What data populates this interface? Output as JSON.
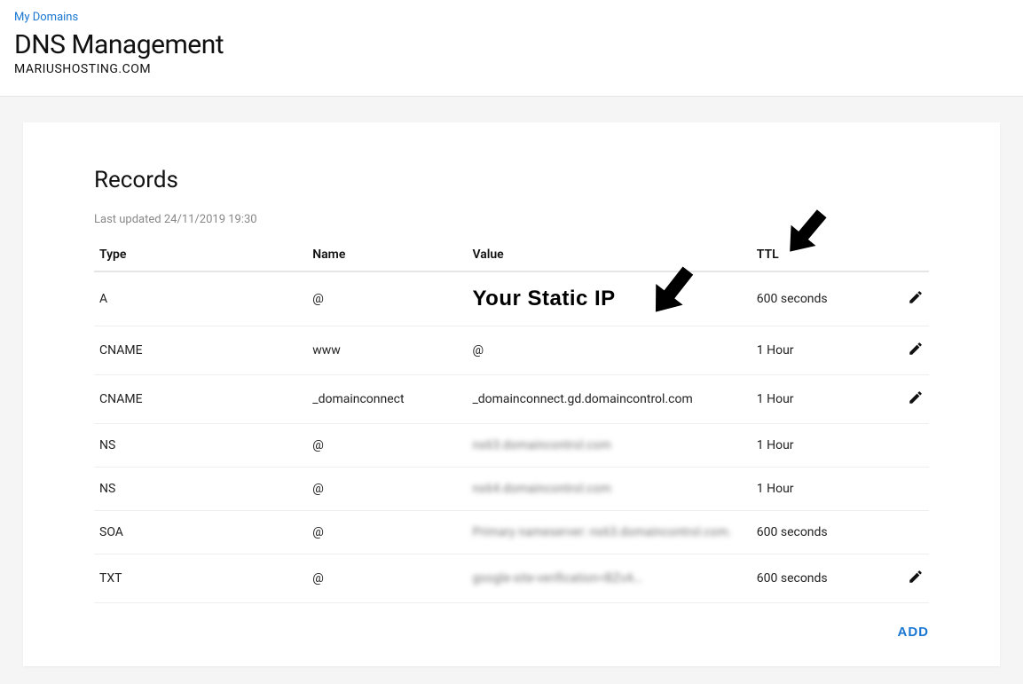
{
  "breadcrumb": {
    "label": "My Domains"
  },
  "page": {
    "title": "DNS Management",
    "domain": "MARIUSHOSTING.COM"
  },
  "records_section": {
    "title": "Records",
    "last_updated_prefix": "Last updated ",
    "last_updated_value": "24/11/2019 19:30",
    "columns": {
      "type": "Type",
      "name": "Name",
      "value": "Value",
      "ttl": "TTL"
    },
    "rows": [
      {
        "type": "A",
        "name": "@",
        "value": "",
        "value_annotation": "Your Static IP",
        "ttl": "600 seconds",
        "editable": true,
        "blurred": false
      },
      {
        "type": "CNAME",
        "name": "www",
        "value": "@",
        "ttl": "1 Hour",
        "editable": true,
        "blurred": false
      },
      {
        "type": "CNAME",
        "name": "_domainconnect",
        "value": "_domainconnect.gd.domaincontrol.com",
        "ttl": "1 Hour",
        "editable": true,
        "blurred": false
      },
      {
        "type": "NS",
        "name": "@",
        "value": "ns63.domaincontrol.com",
        "ttl": "1 Hour",
        "editable": false,
        "blurred": true
      },
      {
        "type": "NS",
        "name": "@",
        "value": "ns64.domaincontrol.com",
        "ttl": "1 Hour",
        "editable": false,
        "blurred": true
      },
      {
        "type": "SOA",
        "name": "@",
        "value": "Primary nameserver: ns63.domaincontrol.com.",
        "ttl": "600 seconds",
        "editable": false,
        "blurred": true
      },
      {
        "type": "TXT",
        "name": "@",
        "value": "google-site-verification=BZvA…",
        "ttl": "600 seconds",
        "editable": true,
        "blurred": true
      }
    ],
    "add_label": "ADD"
  },
  "annotations": {
    "arrow_fill": "#000000",
    "arrow1": {
      "target": "value column, row 1 (A record)"
    },
    "arrow2": {
      "target": "TTL column header"
    }
  },
  "colors": {
    "link": "#1976d2",
    "text": "#111111",
    "muted": "#888888",
    "border": "#e5e5e5",
    "row_border": "#eeeeee",
    "page_bg": "#f5f5f5",
    "card_bg": "#ffffff"
  },
  "typography": {
    "page_title_fontsize": 30,
    "records_title_fontsize": 26,
    "body_fontsize": 14,
    "annotation_fontsize": 24,
    "annotation_fontfamily": "Impact"
  }
}
